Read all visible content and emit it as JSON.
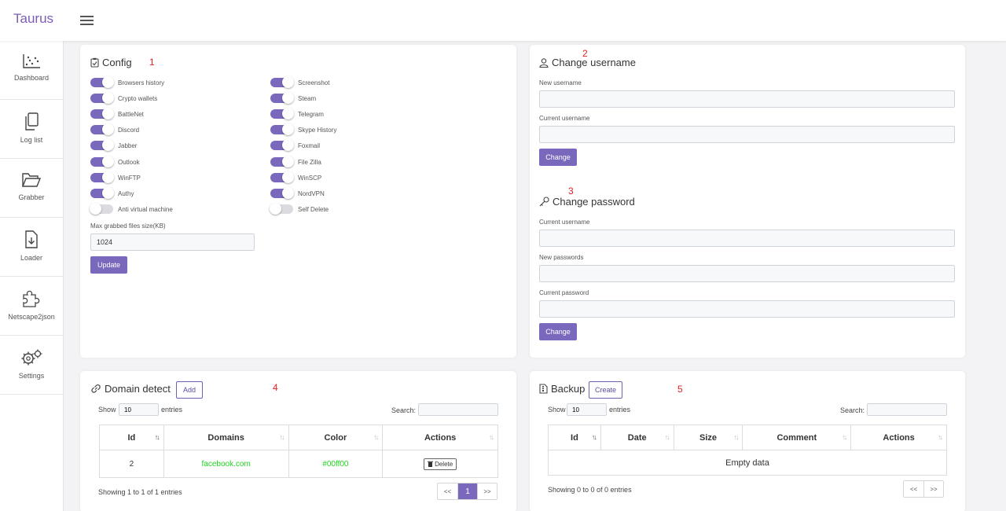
{
  "app": {
    "brand": "Taurus"
  },
  "sidebar": {
    "items": [
      {
        "label": "Dashboard",
        "icon": "chart-icon"
      },
      {
        "label": "Log list",
        "icon": "documents-icon"
      },
      {
        "label": "Grabber",
        "icon": "folder-icon"
      },
      {
        "label": "Loader",
        "icon": "download-file-icon"
      },
      {
        "label": "Netscape2json",
        "icon": "puzzle-icon"
      },
      {
        "label": "Settings",
        "icon": "gears-icon"
      }
    ]
  },
  "annotations": [
    "1",
    "2",
    "3",
    "4",
    "5"
  ],
  "config": {
    "title": "Config",
    "toggles_left": [
      {
        "label": "Browsers history",
        "on": true
      },
      {
        "label": "Crypto wallets",
        "on": true
      },
      {
        "label": "BattleNet",
        "on": true
      },
      {
        "label": "Discord",
        "on": true
      },
      {
        "label": "Jabber",
        "on": true
      },
      {
        "label": "Outlook",
        "on": true
      },
      {
        "label": "WinFTP",
        "on": true
      },
      {
        "label": "Authy",
        "on": true
      },
      {
        "label": "Anti virtual machine",
        "on": false
      }
    ],
    "toggles_right": [
      {
        "label": "Screenshot",
        "on": true
      },
      {
        "label": "Steam",
        "on": true
      },
      {
        "label": "Telegram",
        "on": true
      },
      {
        "label": "Skype History",
        "on": true
      },
      {
        "label": "Foxmail",
        "on": true
      },
      {
        "label": "File Zilla",
        "on": true
      },
      {
        "label": "WinSCP",
        "on": true
      },
      {
        "label": "NordVPN",
        "on": true
      },
      {
        "label": "Self Delete",
        "on": false
      }
    ],
    "max_size_label": "Max grabbed files size(KB)",
    "max_size_value": "1024",
    "update_label": "Update"
  },
  "change_username": {
    "title": "Change username",
    "new_label": "New username",
    "current_label": "Current username",
    "button": "Change"
  },
  "change_password": {
    "title": "Change password",
    "username_label": "Current username",
    "new_label": "New passwords",
    "current_label": "Current password",
    "button": "Change"
  },
  "domain_detect": {
    "title": "Domain detect",
    "add_label": "Add",
    "show_label": "Show",
    "entries_value": "10",
    "entries_label": "entries",
    "search_label": "Search:",
    "columns": [
      "Id",
      "Domains",
      "Color",
      "Actions"
    ],
    "rows": [
      {
        "id": "2",
        "domain": "facebook.com",
        "color": "#00ff00",
        "action": "Delete"
      }
    ],
    "info": "Showing 1 to 1 of 1 entries",
    "pager": [
      "<<",
      "1",
      ">>"
    ]
  },
  "backup": {
    "title": "Backup",
    "create_label": "Create",
    "show_label": "Show",
    "entries_value": "10",
    "entries_label": "entries",
    "search_label": "Search:",
    "columns": [
      "Id",
      "Date",
      "Size",
      "Comment",
      "Actions"
    ],
    "empty_text": "Empty data",
    "info": "Showing 0 to 0 of 0 entries",
    "pager": [
      "<<",
      ">>"
    ]
  }
}
